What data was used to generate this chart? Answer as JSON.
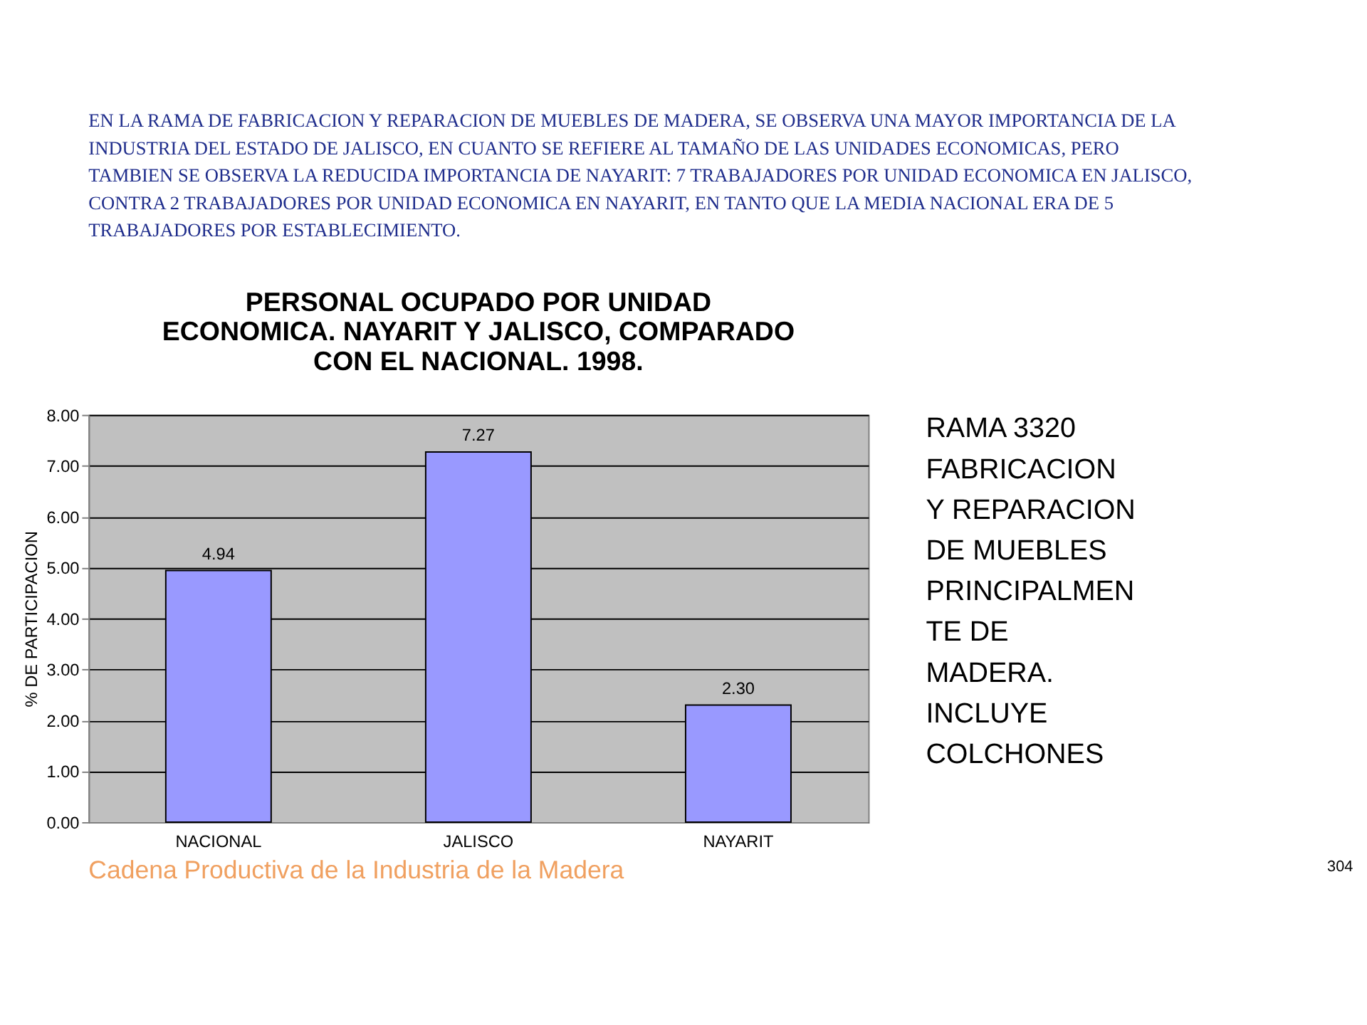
{
  "chart_data": {
    "type": "bar",
    "title": "PERSONAL OCUPADO POR UNIDAD\nECONOMICA. NAYARIT Y JALISCO, COMPARADO\nCON EL NACIONAL. 1998.",
    "subtitle": "EN LA RAMA DE FABRICACION Y REPARACION DE MUEBLES DE MADERA, SE OBSERVA UNA MAYOR IMPORTANCIA DE LA INDUSTRIA DEL ESTADO DE JALISCO, EN CUANTO SE REFIERE AL TAMAÑO DE LAS UNIDADES ECONOMICAS, PERO TAMBIEN SE OBSERVA LA REDUCIDA IMPORTANCIA DE NAYARIT: 7 TRABAJADORES POR UNIDAD ECONOMICA EN JALISCO, CONTRA 2 TRABAJADORES POR UNIDAD ECONOMICA EN NAYARIT, EN TANTO QUE LA MEDIA NACIONAL ERA DE 5 TRABAJADORES POR ESTABLECIMIENTO.",
    "ylabel": "% DE PARTICIPACION",
    "categories": [
      "NACIONAL",
      "JALISCO",
      "NAYARIT"
    ],
    "values": [
      4.94,
      7.27,
      2.3
    ],
    "value_labels": [
      "4.94",
      "7.27",
      "2.30"
    ],
    "color": "#9999ff",
    "ylim": [
      0,
      8
    ],
    "yticks": [
      {
        "value": 0,
        "label": "0.00"
      },
      {
        "value": 1,
        "label": "1.00"
      },
      {
        "value": 2,
        "label": "2.00"
      },
      {
        "value": 3,
        "label": "3.00"
      },
      {
        "value": 4,
        "label": "4.00"
      },
      {
        "value": 5,
        "label": "5.00"
      },
      {
        "value": 6,
        "label": "6.00"
      },
      {
        "value": 7,
        "label": "7.00"
      },
      {
        "value": 8,
        "label": "8.00"
      }
    ],
    "grid": "y",
    "annotations": [
      "RAMA 3320\nFABRICACION\nY REPARACION\nDE MUEBLES\nPRINCIPALMEN\nTE DE\nMADERA.\nINCLUYE\nCOLCHONES",
      "304",
      "Cadena Productiva de la Industria de la Madera"
    ]
  }
}
